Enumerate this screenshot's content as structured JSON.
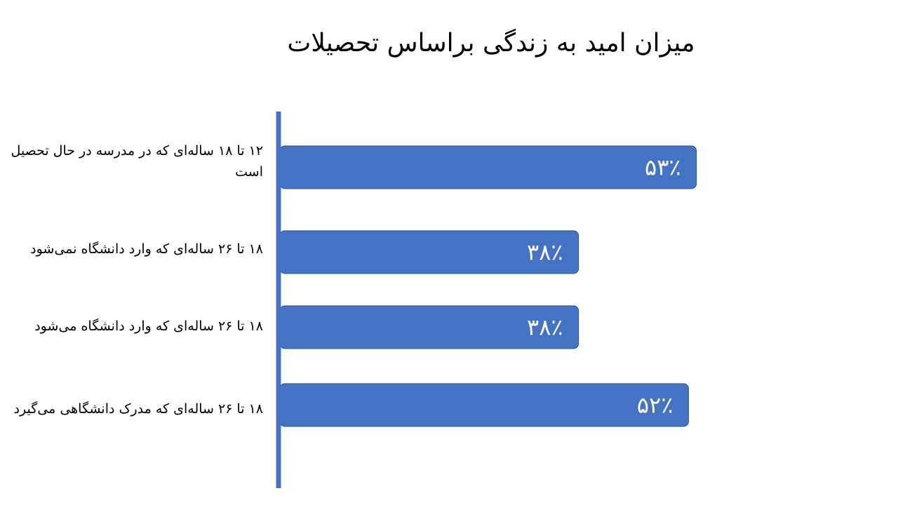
{
  "title": "میزان امید به زندگی براساس تحصیلات",
  "colors": {
    "bar": "#4472C4",
    "bar_stroke": "#2F528F",
    "axis": "#4472C4",
    "label_text": "#FFFFFF"
  },
  "chart_data": {
    "type": "bar",
    "orientation": "horizontal",
    "title": "میزان امید به زندگی براساس تحصیلات",
    "categories": [
      "۱۲ تا ۱۸ ساله‌ای که در مدرسه در حال تحصیل است",
      "۱۸ تا ۲۶ ساله‌ای که وارد دانشگاه نمی‌شود",
      "۱۸ تا ۲۶ ساله‌ای که وارد دانشگاه می‌شود",
      "۱۸ تا ۲۶ ساله‌ای که مدرک دانشگاهی می‌گیرد"
    ],
    "values": [
      53,
      38,
      38,
      52
    ],
    "data_labels": [
      "۵۳٪",
      "۳۸٪",
      "۳۸٪",
      "۵۲٪"
    ],
    "xlim": [
      0,
      70
    ],
    "grid": false,
    "legend": "none"
  }
}
